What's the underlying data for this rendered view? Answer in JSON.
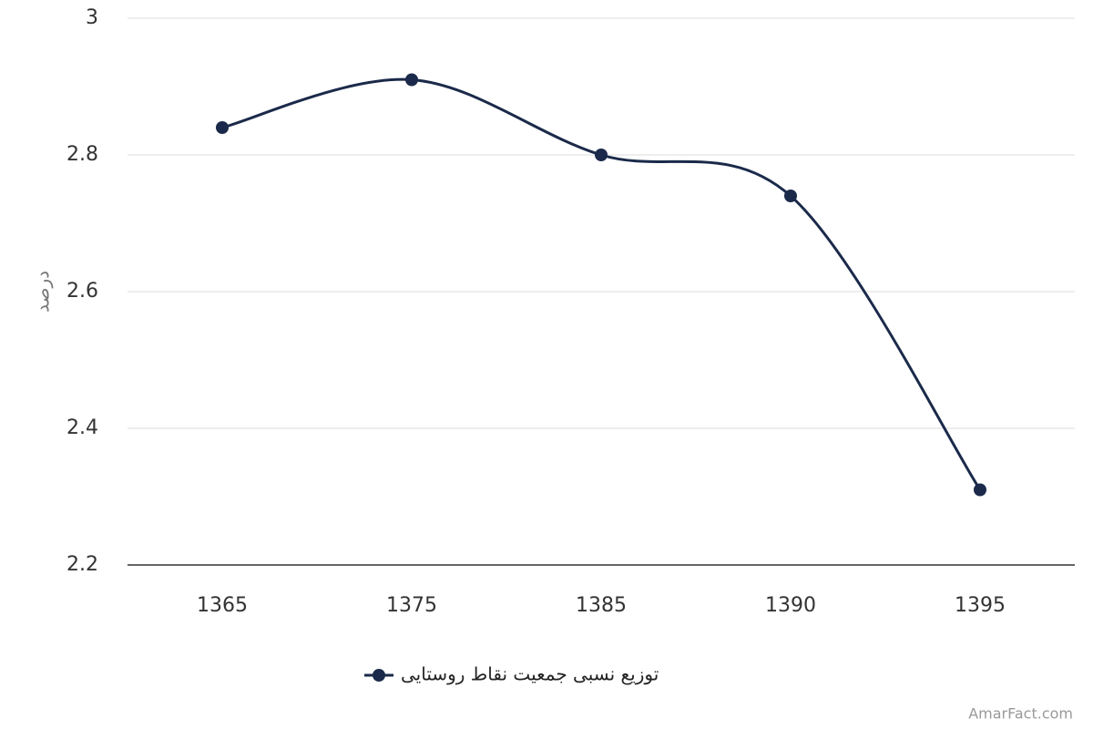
{
  "chart_data": {
    "type": "line",
    "y_label": "درصد",
    "categories": [
      "1365",
      "1375",
      "1385",
      "1390",
      "1395"
    ],
    "series": [
      {
        "name": "توزیع نسبی جمعیت نقاط روستایی",
        "color": "#1b2a4a",
        "values": [
          2.84,
          2.91,
          2.8,
          2.74,
          2.31
        ]
      }
    ],
    "ylim": [
      2.2,
      3
    ],
    "yticks": [
      2.2,
      2.4,
      2.6,
      2.8,
      3
    ],
    "grid": true,
    "legend": "bottom",
    "smooth": true
  },
  "watermark": "AmarFact.com"
}
